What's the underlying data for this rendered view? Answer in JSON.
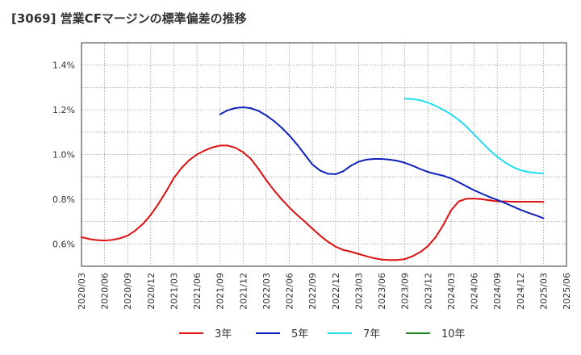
{
  "chart_data": {
    "type": "line",
    "title": "[3069]  営業CFマージンの標準偏差の推移",
    "ylabel": "",
    "xlabel": "",
    "ylim": [
      0.5,
      1.5
    ],
    "yticks": [
      0.6,
      0.8,
      1.0,
      1.2,
      1.4
    ],
    "yticklabels": [
      "0.6%",
      "0.8%",
      "1.0%",
      "1.2%",
      "1.4%"
    ],
    "x_categories": [
      "2020/03",
      "2020/06",
      "2020/09",
      "2020/12",
      "2021/03",
      "2021/06",
      "2021/09",
      "2021/12",
      "2022/03",
      "2022/06",
      "2022/09",
      "2022/12",
      "2023/03",
      "2023/06",
      "2023/09",
      "2023/12",
      "2024/03",
      "2024/06",
      "2024/09",
      "2024/12",
      "2025/03",
      "2025/06"
    ],
    "grid": true,
    "legend_position": "bottom",
    "series": [
      {
        "name": "3年",
        "color": "#dd1111",
        "points": [
          [
            "2020/03",
            0.63
          ],
          [
            "2020/04",
            0.622
          ],
          [
            "2020/05",
            0.617
          ],
          [
            "2020/06",
            0.615
          ],
          [
            "2020/07",
            0.618
          ],
          [
            "2020/08",
            0.625
          ],
          [
            "2020/09",
            0.637
          ],
          [
            "2020/10",
            0.66
          ],
          [
            "2020/11",
            0.69
          ],
          [
            "2020/12",
            0.73
          ],
          [
            "2021/01",
            0.78
          ],
          [
            "2021/02",
            0.835
          ],
          [
            "2021/03",
            0.895
          ],
          [
            "2021/04",
            0.94
          ],
          [
            "2021/05",
            0.975
          ],
          [
            "2021/06",
            1.0
          ],
          [
            "2021/07",
            1.018
          ],
          [
            "2021/08",
            1.032
          ],
          [
            "2021/09",
            1.04
          ],
          [
            "2021/10",
            1.04
          ],
          [
            "2021/11",
            1.03
          ],
          [
            "2021/12",
            1.01
          ],
          [
            "2022/01",
            0.98
          ],
          [
            "2022/02",
            0.935
          ],
          [
            "2022/03",
            0.885
          ],
          [
            "2022/04",
            0.84
          ],
          [
            "2022/05",
            0.8
          ],
          [
            "2022/06",
            0.763
          ],
          [
            "2022/07",
            0.73
          ],
          [
            "2022/08",
            0.7
          ],
          [
            "2022/09",
            0.668
          ],
          [
            "2022/10",
            0.637
          ],
          [
            "2022/11",
            0.61
          ],
          [
            "2022/12",
            0.588
          ],
          [
            "2023/01",
            0.573
          ],
          [
            "2023/02",
            0.565
          ],
          [
            "2023/03",
            0.555
          ],
          [
            "2023/04",
            0.545
          ],
          [
            "2023/05",
            0.536
          ],
          [
            "2023/06",
            0.53
          ],
          [
            "2023/07",
            0.528
          ],
          [
            "2023/08",
            0.528
          ],
          [
            "2023/09",
            0.532
          ],
          [
            "2023/10",
            0.545
          ],
          [
            "2023/11",
            0.563
          ],
          [
            "2023/12",
            0.59
          ],
          [
            "2024/01",
            0.63
          ],
          [
            "2024/02",
            0.685
          ],
          [
            "2024/03",
            0.75
          ],
          [
            "2024/04",
            0.79
          ],
          [
            "2024/05",
            0.802
          ],
          [
            "2024/06",
            0.803
          ],
          [
            "2024/07",
            0.8
          ],
          [
            "2024/08",
            0.795
          ],
          [
            "2024/09",
            0.79
          ],
          [
            "2024/10",
            0.79
          ],
          [
            "2024/11",
            0.789
          ],
          [
            "2024/12",
            0.789
          ],
          [
            "2025/01",
            0.789
          ],
          [
            "2025/02",
            0.789
          ],
          [
            "2025/03",
            0.788
          ]
        ]
      },
      {
        "name": "5年",
        "color": "#1122bb",
        "points": [
          [
            "2021/09",
            1.18
          ],
          [
            "2021/10",
            1.198
          ],
          [
            "2021/11",
            1.208
          ],
          [
            "2021/12",
            1.211
          ],
          [
            "2022/01",
            1.207
          ],
          [
            "2022/02",
            1.195
          ],
          [
            "2022/03",
            1.175
          ],
          [
            "2022/04",
            1.15
          ],
          [
            "2022/05",
            1.12
          ],
          [
            "2022/06",
            1.085
          ],
          [
            "2022/07",
            1.045
          ],
          [
            "2022/08",
            1.0
          ],
          [
            "2022/09",
            0.955
          ],
          [
            "2022/10",
            0.928
          ],
          [
            "2022/11",
            0.914
          ],
          [
            "2022/12",
            0.912
          ],
          [
            "2023/01",
            0.925
          ],
          [
            "2023/02",
            0.95
          ],
          [
            "2023/03",
            0.968
          ],
          [
            "2023/04",
            0.977
          ],
          [
            "2023/05",
            0.98
          ],
          [
            "2023/06",
            0.98
          ],
          [
            "2023/07",
            0.977
          ],
          [
            "2023/08",
            0.972
          ],
          [
            "2023/09",
            0.963
          ],
          [
            "2023/10",
            0.95
          ],
          [
            "2023/11",
            0.935
          ],
          [
            "2023/12",
            0.922
          ],
          [
            "2024/01",
            0.913
          ],
          [
            "2024/02",
            0.905
          ],
          [
            "2024/03",
            0.893
          ],
          [
            "2024/04",
            0.876
          ],
          [
            "2024/05",
            0.858
          ],
          [
            "2024/06",
            0.84
          ],
          [
            "2024/07",
            0.825
          ],
          [
            "2024/08",
            0.81
          ],
          [
            "2024/09",
            0.797
          ],
          [
            "2024/10",
            0.783
          ],
          [
            "2024/11",
            0.768
          ],
          [
            "2024/12",
            0.753
          ],
          [
            "2025/01",
            0.74
          ],
          [
            "2025/02",
            0.728
          ],
          [
            "2025/03",
            0.715
          ]
        ]
      },
      {
        "name": "7年",
        "color": "#22ddee",
        "points": [
          [
            "2023/09",
            1.25
          ],
          [
            "2023/10",
            1.248
          ],
          [
            "2023/11",
            1.243
          ],
          [
            "2023/12",
            1.232
          ],
          [
            "2024/01",
            1.218
          ],
          [
            "2024/02",
            1.2
          ],
          [
            "2024/03",
            1.18
          ],
          [
            "2024/04",
            1.155
          ],
          [
            "2024/05",
            1.125
          ],
          [
            "2024/06",
            1.09
          ],
          [
            "2024/07",
            1.055
          ],
          [
            "2024/08",
            1.02
          ],
          [
            "2024/09",
            0.99
          ],
          [
            "2024/10",
            0.965
          ],
          [
            "2024/11",
            0.945
          ],
          [
            "2024/12",
            0.93
          ],
          [
            "2025/01",
            0.922
          ],
          [
            "2025/02",
            0.918
          ],
          [
            "2025/03",
            0.915
          ]
        ]
      },
      {
        "name": "10年",
        "color": "#228822",
        "points": []
      }
    ]
  }
}
